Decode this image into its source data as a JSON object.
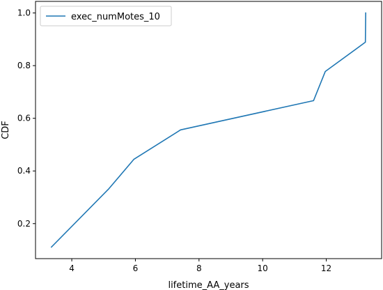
{
  "chart_data": {
    "type": "line",
    "title": "",
    "xlabel": "lifetime_AA_years",
    "ylabel": "CDF",
    "xlim": [
      2.86,
      13.74
    ],
    "ylim": [
      0.067,
      1.044
    ],
    "xticks": [
      4,
      6,
      8,
      10,
      12
    ],
    "xtick_labels": [
      "4",
      "6",
      "8",
      "10",
      "12"
    ],
    "yticks": [
      0.2,
      0.4,
      0.6,
      0.8,
      1.0
    ],
    "ytick_labels": [
      "0.2",
      "0.4",
      "0.6",
      "0.8",
      "1.0"
    ],
    "grid": false,
    "legend_position": "top-left",
    "series": [
      {
        "name": "exec_numMotes_10",
        "color": "#1f77b4",
        "x": [
          3.36,
          5.17,
          5.95,
          7.42,
          11.6,
          11.97,
          13.23,
          13.24
        ],
        "y": [
          0.111,
          0.333,
          0.444,
          0.556,
          0.667,
          0.778,
          0.889,
          1.0
        ]
      }
    ]
  }
}
